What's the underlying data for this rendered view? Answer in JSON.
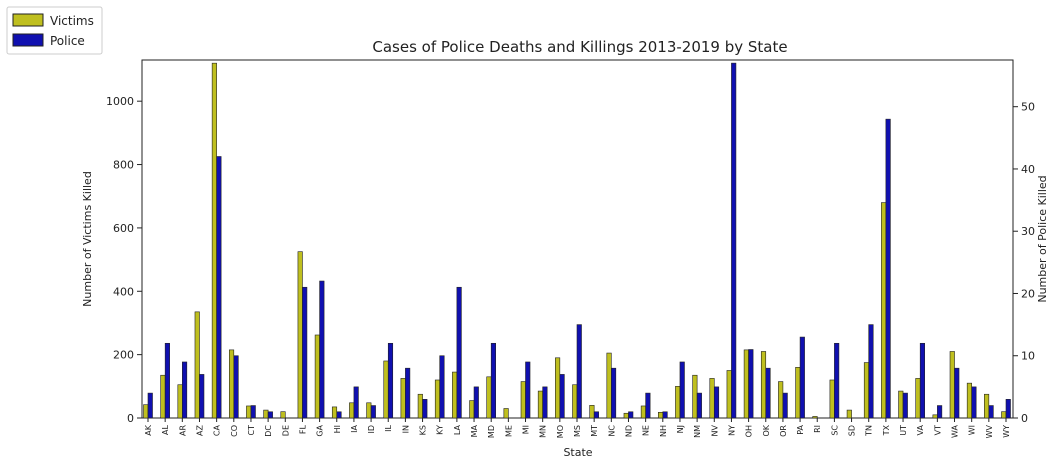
{
  "chart_data": {
    "type": "bar",
    "title": "Cases of Police Deaths and Killings 2013-2019 by State",
    "xlabel": "State",
    "ylabel_left": "Number of Victims Killed",
    "ylabel_right": "Number of Police Killed",
    "ylim_left": [
      0,
      1130
    ],
    "ylim_right": [
      0,
      57.5
    ],
    "yticks_left": [
      0,
      200,
      400,
      600,
      800,
      1000
    ],
    "yticks_right": [
      0,
      10,
      20,
      30,
      40,
      50
    ],
    "legend_placement": "top-left",
    "grid": false,
    "categories": [
      "AK",
      "AL",
      "AR",
      "AZ",
      "CA",
      "CO",
      "CT",
      "DC",
      "DE",
      "FL",
      "GA",
      "HI",
      "IA",
      "ID",
      "IL",
      "IN",
      "KS",
      "KY",
      "LA",
      "MA",
      "MD",
      "ME",
      "MI",
      "MN",
      "MO",
      "MS",
      "MT",
      "NC",
      "ND",
      "NE",
      "NH",
      "NJ",
      "NM",
      "NV",
      "NY",
      "OH",
      "OK",
      "OR",
      "PA",
      "RI",
      "SC",
      "SD",
      "TN",
      "TX",
      "UT",
      "VA",
      "VT",
      "WA",
      "WI",
      "WV",
      "WY"
    ],
    "series": [
      {
        "name": "Victims",
        "axis": "left",
        "color": "#bfbf1f",
        "values": [
          42,
          135,
          105,
          335,
          1120,
          215,
          38,
          25,
          20,
          525,
          262,
          35,
          48,
          48,
          180,
          125,
          75,
          120,
          145,
          55,
          130,
          30,
          115,
          85,
          190,
          105,
          40,
          205,
          15,
          38,
          18,
          100,
          135,
          125,
          150,
          215,
          210,
          115,
          160,
          5,
          120,
          25,
          175,
          680,
          85,
          125,
          10,
          210,
          110,
          75,
          20
        ]
      },
      {
        "name": "Police",
        "axis": "right",
        "color": "#1010b0",
        "values": [
          4,
          12,
          9,
          7,
          42,
          10,
          2,
          1,
          0,
          21,
          22,
          1,
          5,
          2,
          12,
          8,
          3,
          10,
          21,
          5,
          12,
          0,
          9,
          5,
          7,
          15,
          1,
          8,
          1,
          4,
          1,
          9,
          4,
          5,
          57,
          11,
          8,
          4,
          13,
          0,
          12,
          0,
          15,
          48,
          4,
          12,
          2,
          8,
          5,
          2,
          3
        ]
      }
    ]
  }
}
